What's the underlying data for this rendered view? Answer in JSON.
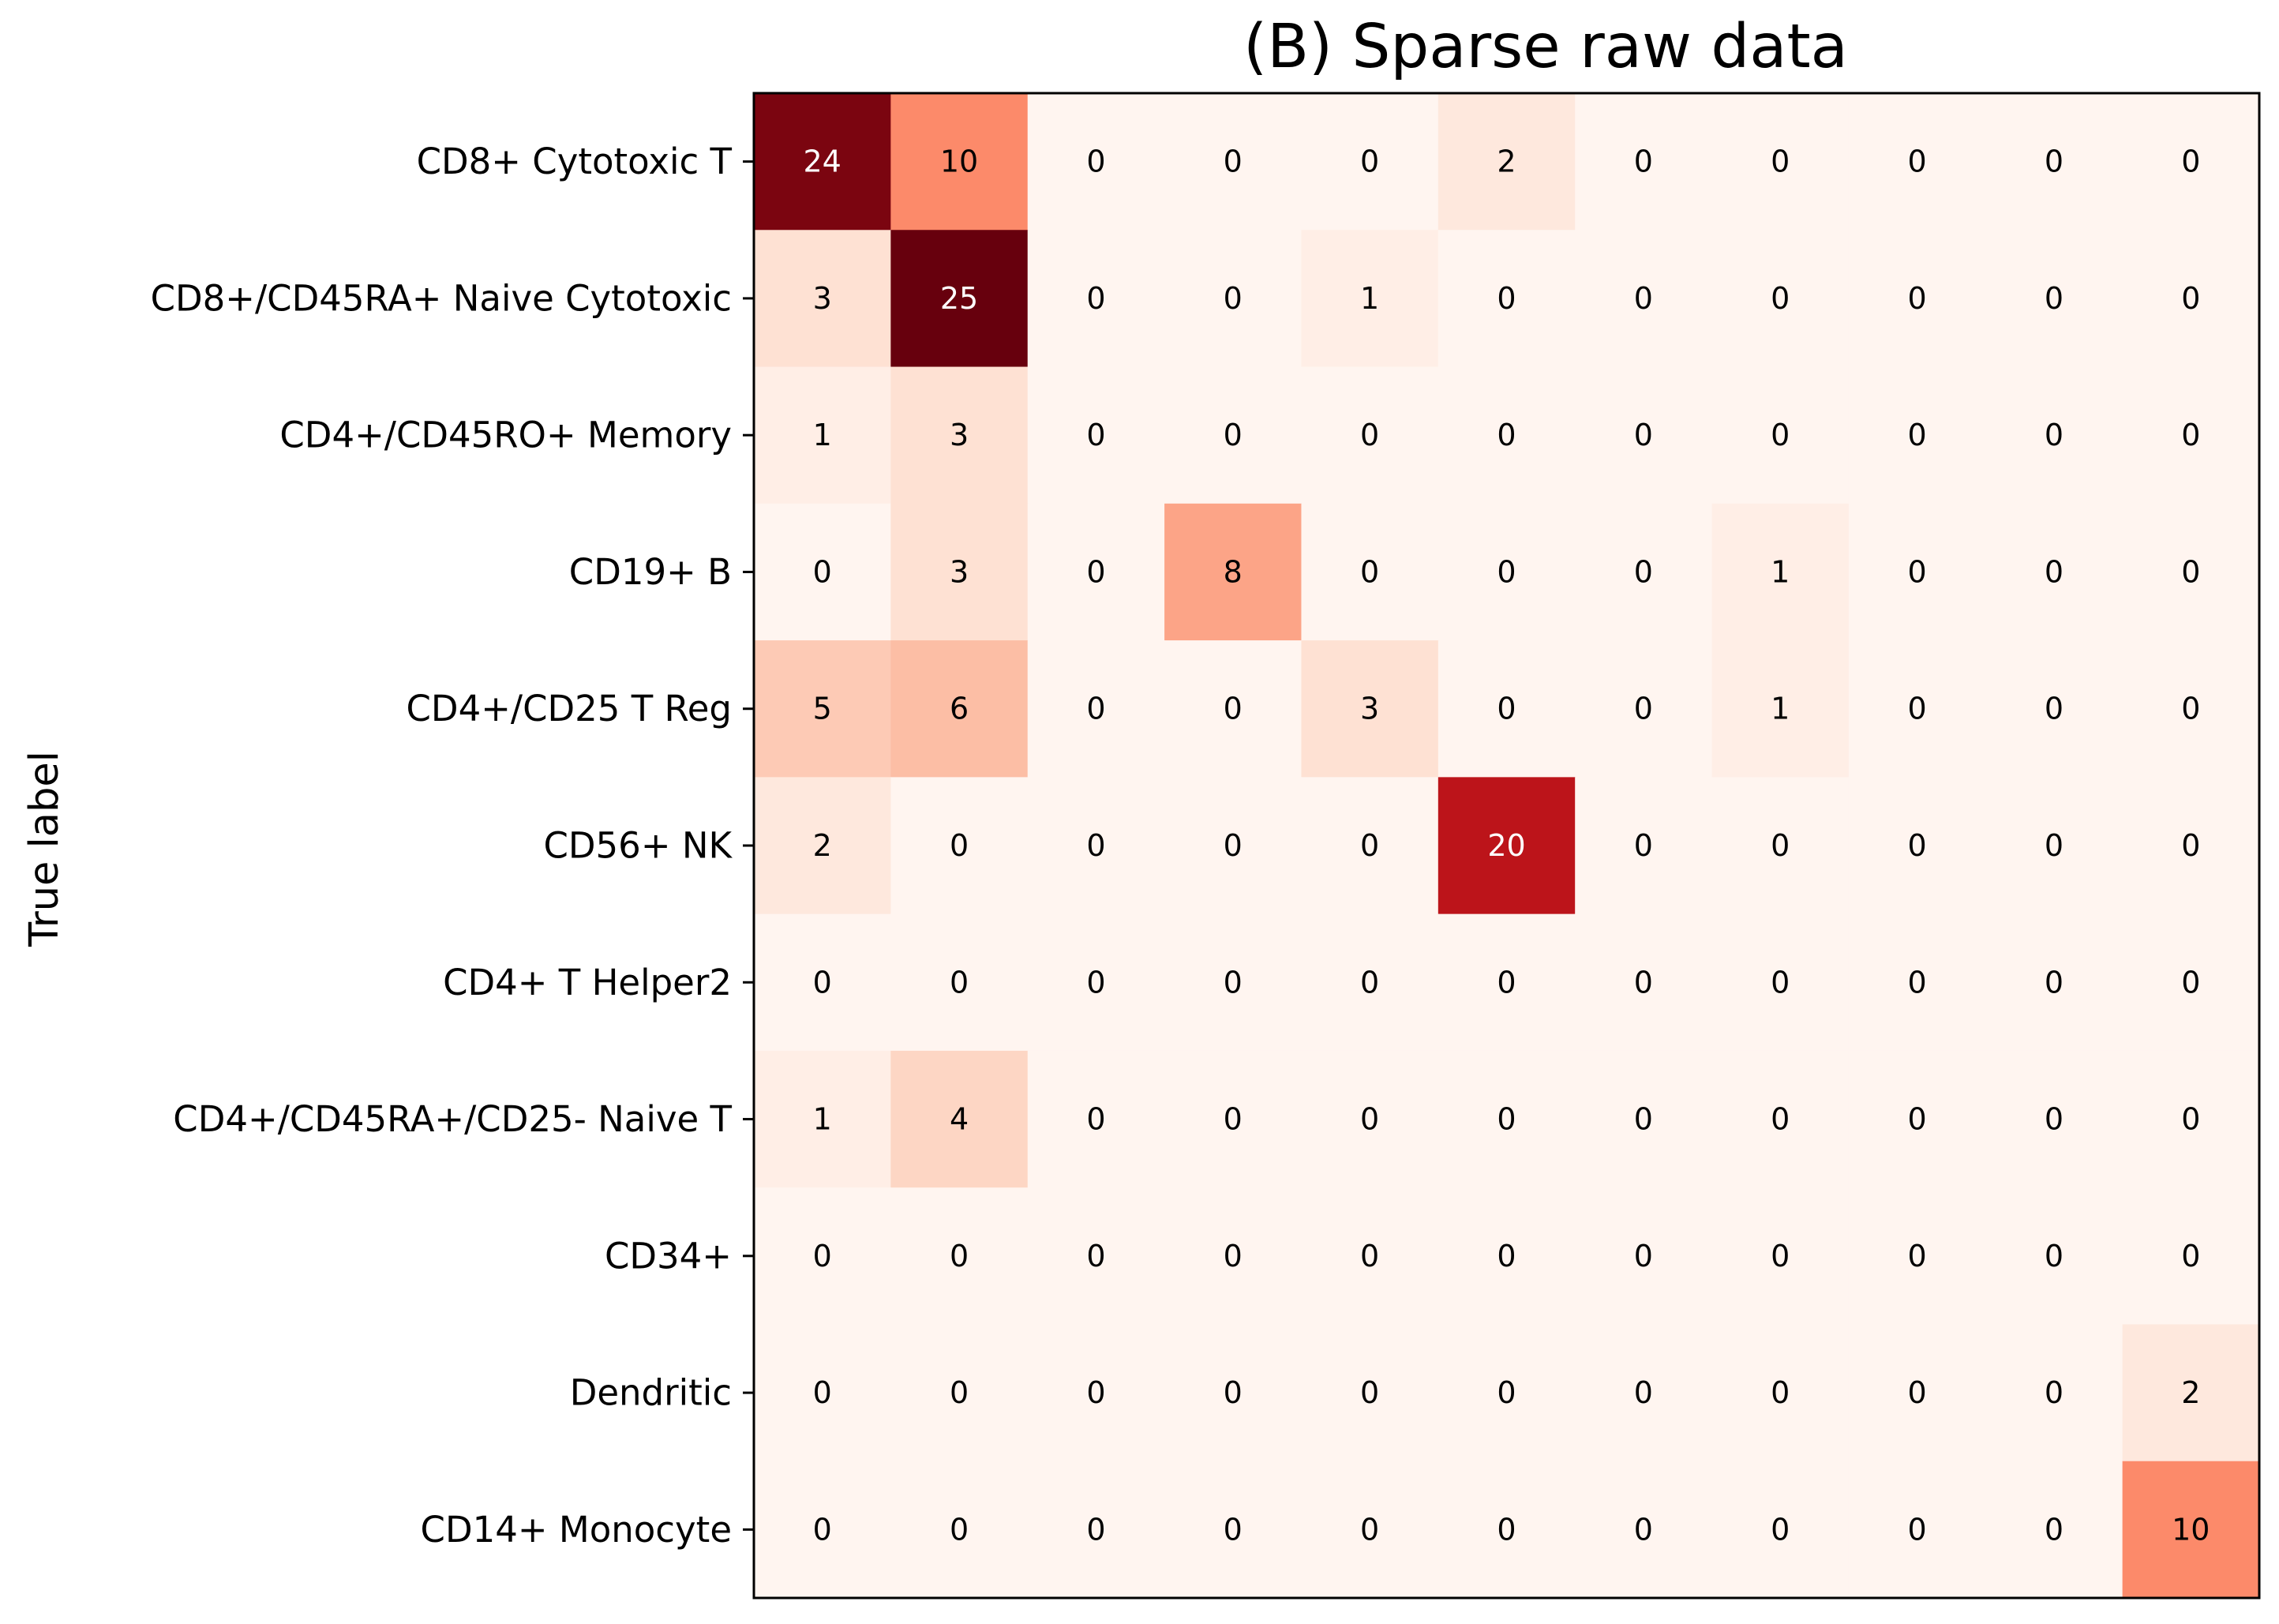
{
  "chart_data": {
    "type": "heatmap",
    "title": "(B) Sparse raw data",
    "ylabel": "True label",
    "xlabel": "",
    "row_labels": [
      "CD8+ Cytotoxic T",
      "CD8+/CD45RA+ Naive Cytotoxic",
      "CD4+/CD45RO+ Memory",
      "CD19+ B",
      "CD4+/CD25 T Reg",
      "CD56+ NK",
      "CD4+ T Helper2",
      "CD4+/CD45RA+/CD25- Naive T",
      "CD34+",
      "Dendritic",
      "CD14+ Monocyte"
    ],
    "column_labels": [],
    "values": [
      [
        24,
        10,
        0,
        0,
        0,
        2,
        0,
        0,
        0,
        0,
        0
      ],
      [
        3,
        25,
        0,
        0,
        1,
        0,
        0,
        0,
        0,
        0,
        0
      ],
      [
        1,
        3,
        0,
        0,
        0,
        0,
        0,
        0,
        0,
        0,
        0
      ],
      [
        0,
        3,
        0,
        8,
        0,
        0,
        0,
        1,
        0,
        0,
        0
      ],
      [
        5,
        6,
        0,
        0,
        3,
        0,
        0,
        1,
        0,
        0,
        0
      ],
      [
        2,
        0,
        0,
        0,
        0,
        20,
        0,
        0,
        0,
        0,
        0
      ],
      [
        0,
        0,
        0,
        0,
        0,
        0,
        0,
        0,
        0,
        0,
        0
      ],
      [
        1,
        4,
        0,
        0,
        0,
        0,
        0,
        0,
        0,
        0,
        0
      ],
      [
        0,
        0,
        0,
        0,
        0,
        0,
        0,
        0,
        0,
        0,
        0
      ],
      [
        0,
        0,
        0,
        0,
        0,
        0,
        0,
        0,
        0,
        0,
        2
      ],
      [
        0,
        0,
        0,
        0,
        0,
        0,
        0,
        0,
        0,
        0,
        10
      ]
    ],
    "value_range": [
      0,
      25
    ],
    "colormap": "Reds",
    "colorbar": false,
    "grid": false,
    "colors": {
      "low": "#fff5f0",
      "high": "#67000d",
      "text_dark": "#000000",
      "text_light": "#ffffff"
    }
  }
}
